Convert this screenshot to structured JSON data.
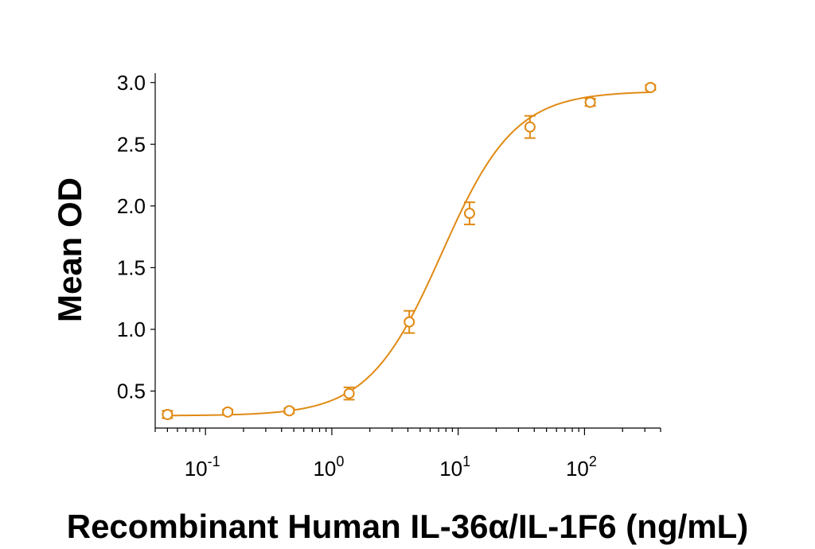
{
  "chart_data": {
    "type": "scatter",
    "title": "",
    "xlabel": "Recombinant Human IL-36α/IL-1F6 (ng/mL)",
    "ylabel": "Mean OD",
    "x_scale": "log",
    "xlim": [
      0.04,
      400
    ],
    "ylim": [
      0.2,
      3.05
    ],
    "grid": false,
    "color": "#E08A14",
    "x_ticks": [
      {
        "value": 0.1,
        "base": "10",
        "exp": "-1"
      },
      {
        "value": 1,
        "base": "10",
        "exp": "0"
      },
      {
        "value": 10,
        "base": "10",
        "exp": "1"
      },
      {
        "value": 100,
        "base": "10",
        "exp": "2"
      }
    ],
    "y_ticks": [
      {
        "value": 0.5,
        "label": "0.5"
      },
      {
        "value": 1.0,
        "label": "1.0"
      },
      {
        "value": 1.5,
        "label": "1.5"
      },
      {
        "value": 2.0,
        "label": "2.0"
      },
      {
        "value": 2.5,
        "label": "2.5"
      },
      {
        "value": 3.0,
        "label": "3.0"
      }
    ],
    "series": [
      {
        "points": [
          {
            "x": 0.05,
            "y": 0.31,
            "err": 0.03
          },
          {
            "x": 0.15,
            "y": 0.33,
            "err": 0.02
          },
          {
            "x": 0.46,
            "y": 0.34,
            "err": 0.02
          },
          {
            "x": 1.37,
            "y": 0.48,
            "err": 0.05
          },
          {
            "x": 4.1,
            "y": 1.06,
            "err": 0.09
          },
          {
            "x": 12.3,
            "y": 1.94,
            "err": 0.09
          },
          {
            "x": 37,
            "y": 2.64,
            "err": 0.09
          },
          {
            "x": 111,
            "y": 2.84,
            "err": 0.03
          },
          {
            "x": 333,
            "y": 2.96,
            "err": 0.02
          }
        ],
        "fit": {
          "bottom": 0.3,
          "top": 2.93,
          "ec50": 7.4,
          "hill": 1.5
        }
      }
    ]
  }
}
